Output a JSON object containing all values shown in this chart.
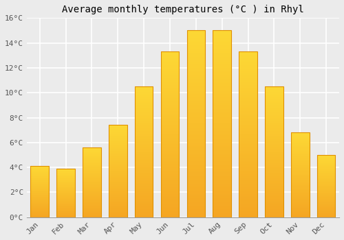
{
  "title": "Average monthly temperatures (°C ) in Rhyl",
  "months": [
    "Jan",
    "Feb",
    "Mar",
    "Apr",
    "May",
    "Jun",
    "Jul",
    "Aug",
    "Sep",
    "Oct",
    "Nov",
    "Dec"
  ],
  "temperatures": [
    4.1,
    3.9,
    5.6,
    7.4,
    10.5,
    13.3,
    15.0,
    15.0,
    13.3,
    10.5,
    6.8,
    5.0
  ],
  "bar_color_bottom": "#F5A623",
  "bar_color_top": "#FDD835",
  "bar_edge_color": "#E09000",
  "ylim": [
    0,
    16
  ],
  "yticks": [
    0,
    2,
    4,
    6,
    8,
    10,
    12,
    14,
    16
  ],
  "ytick_labels": [
    "0°C",
    "2°C",
    "4°C",
    "6°C",
    "8°C",
    "10°C",
    "12°C",
    "14°C",
    "16°C"
  ],
  "background_color": "#ebebeb",
  "grid_color": "#ffffff",
  "title_fontsize": 10,
  "tick_fontsize": 8,
  "font_family": "monospace"
}
